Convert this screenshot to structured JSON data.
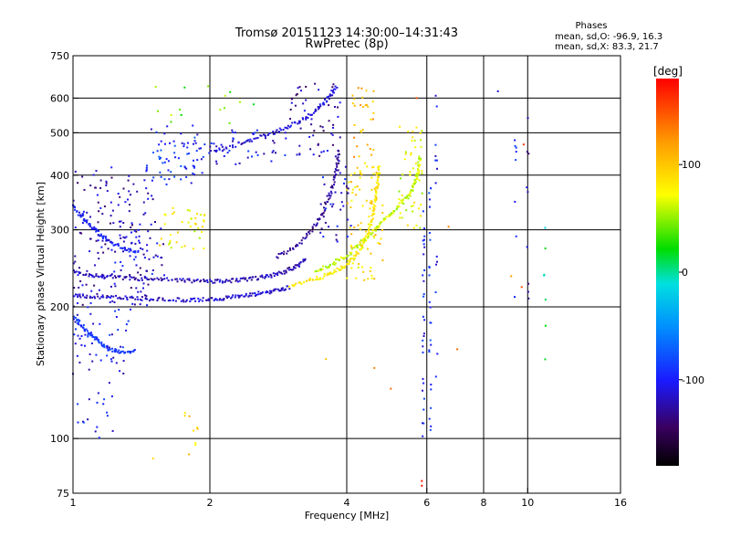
{
  "chart_data": {
    "type": "scatter",
    "title": "Tromsø 20151123 14:30:00–14:31:43",
    "subtitle": "RwPretec (8p)",
    "xlabel": "Frequency [MHz]",
    "ylabel": "Stationary phase Virtual Height [km]",
    "x_scale": "log",
    "y_scale": "log",
    "xlim": [
      1,
      16
    ],
    "ylim": [
      75,
      750
    ],
    "x_ticks": [
      1,
      2,
      4,
      6,
      8,
      10,
      16
    ],
    "y_ticks": [
      75,
      100,
      200,
      300,
      400,
      500,
      600,
      750
    ],
    "x_grid": [
      2,
      4,
      6,
      8,
      10
    ],
    "y_grid": [
      100,
      200,
      300,
      400,
      500,
      600
    ],
    "grid": true,
    "stats": {
      "heading": "Phases",
      "line_o": "mean, sd,O: -96.9, 16.3",
      "line_x": "mean, sd,X:  83.3, 21.7"
    },
    "colorbar": {
      "label": "[deg]",
      "min": -180,
      "max": 180,
      "ticks": [
        {
          "value": 100,
          "label": "100"
        },
        {
          "value": 0,
          "label": "0"
        },
        {
          "value": -100,
          "label": "-100"
        }
      ]
    },
    "traces": [
      {
        "phase": -120,
        "points": [
          [
            1.0,
            240
          ],
          [
            1.1,
            236
          ],
          [
            1.2,
            234
          ],
          [
            1.35,
            232
          ],
          [
            1.5,
            231
          ],
          [
            1.7,
            230
          ],
          [
            1.9,
            229
          ],
          [
            2.1,
            229
          ],
          [
            2.3,
            230
          ],
          [
            2.5,
            232
          ],
          [
            2.7,
            235
          ],
          [
            2.9,
            240
          ],
          [
            3.1,
            248
          ],
          [
            3.25,
            256
          ]
        ]
      },
      {
        "phase": -115,
        "points": [
          [
            1.0,
            213
          ],
          [
            1.1,
            211
          ],
          [
            1.25,
            210
          ],
          [
            1.4,
            209
          ],
          [
            1.6,
            208
          ],
          [
            1.8,
            207
          ],
          [
            2.0,
            208
          ],
          [
            2.2,
            210
          ],
          [
            2.4,
            212
          ],
          [
            2.6,
            215
          ],
          [
            2.8,
            218
          ],
          [
            3.0,
            222
          ]
        ]
      },
      {
        "phase": 80,
        "points": [
          [
            3.0,
            224
          ],
          [
            3.3,
            229
          ],
          [
            3.6,
            236
          ],
          [
            3.9,
            245
          ],
          [
            4.1,
            256
          ],
          [
            4.3,
            272
          ],
          [
            4.45,
            292
          ],
          [
            4.55,
            318
          ],
          [
            4.62,
            350
          ],
          [
            4.68,
            385
          ],
          [
            4.72,
            420
          ]
        ]
      },
      {
        "phase": 60,
        "points": [
          [
            3.4,
            240
          ],
          [
            3.7,
            250
          ],
          [
            4.0,
            262
          ],
          [
            4.3,
            280
          ],
          [
            4.6,
            300
          ],
          [
            4.9,
            320
          ],
          [
            5.2,
            340
          ],
          [
            5.5,
            362
          ],
          [
            5.65,
            385
          ],
          [
            5.75,
            410
          ],
          [
            5.8,
            440
          ]
        ]
      },
      {
        "phase": -110,
        "points": [
          [
            2.0,
            450
          ],
          [
            2.3,
            470
          ],
          [
            2.6,
            490
          ],
          [
            2.9,
            510
          ],
          [
            3.2,
            535
          ],
          [
            3.45,
            565
          ],
          [
            3.65,
            600
          ],
          [
            3.8,
            640
          ]
        ]
      },
      {
        "phase": -130,
        "points": [
          [
            2.8,
            260
          ],
          [
            3.1,
            275
          ],
          [
            3.35,
            300
          ],
          [
            3.55,
            330
          ],
          [
            3.7,
            370
          ],
          [
            3.8,
            410
          ],
          [
            3.85,
            460
          ]
        ]
      },
      {
        "phase": -90,
        "points": [
          [
            1.0,
            190
          ],
          [
            1.05,
            180
          ],
          [
            1.1,
            172
          ],
          [
            1.15,
            165
          ],
          [
            1.2,
            160
          ],
          [
            1.28,
            158
          ],
          [
            1.38,
            158
          ]
        ]
      },
      {
        "phase": -100,
        "points": [
          [
            1.0,
            340
          ],
          [
            1.05,
            320
          ],
          [
            1.1,
            305
          ],
          [
            1.15,
            292
          ],
          [
            1.2,
            282
          ],
          [
            1.3,
            272
          ],
          [
            1.4,
            265
          ]
        ]
      }
    ],
    "clusters": [
      {
        "phase": -95,
        "x_range": [
          1.45,
          1.95
        ],
        "y_range": [
          380,
          520
        ],
        "count": 70
      },
      {
        "phase": 75,
        "x_range": [
          1.55,
          1.95
        ],
        "y_range": [
          270,
          340
        ],
        "count": 40
      },
      {
        "phase": -120,
        "x_range": [
          1.0,
          1.5
        ],
        "y_range": [
          200,
          420
        ],
        "count": 150
      },
      {
        "phase": -105,
        "x_range": [
          1.0,
          1.35
        ],
        "y_range": [
          140,
          200
        ],
        "count": 50
      },
      {
        "phase": -110,
        "x_range": [
          1.2,
          1.6
        ],
        "y_range": [
          220,
          320
        ],
        "count": 40
      },
      {
        "phase": -105,
        "x_range": [
          2.0,
          3.0
        ],
        "y_range": [
          420,
          510
        ],
        "count": 45
      },
      {
        "phase": -125,
        "x_range": [
          3.0,
          3.9
        ],
        "y_range": [
          440,
          650
        ],
        "count": 55
      },
      {
        "phase": 90,
        "x_range": [
          4.0,
          4.8
        ],
        "y_range": [
          230,
          430
        ],
        "count": 90
      },
      {
        "phase": 110,
        "x_range": [
          4.1,
          4.6
        ],
        "y_range": [
          440,
          640
        ],
        "count": 30
      },
      {
        "phase": 70,
        "x_range": [
          5.2,
          5.9
        ],
        "y_range": [
          300,
          520
        ],
        "count": 50
      },
      {
        "phase": -110,
        "x_range": [
          3.5,
          4.1
        ],
        "y_range": [
          280,
          420
        ],
        "count": 35
      },
      {
        "phase": -100,
        "x_range": [
          1.0,
          1.25
        ],
        "y_range": [
          100,
          140
        ],
        "count": 18
      },
      {
        "phase": 90,
        "x_range": [
          1.75,
          1.9
        ],
        "y_range": [
          96,
          118
        ],
        "count": 8
      },
      {
        "phase": 40,
        "x_range": [
          1.5,
          2.5
        ],
        "y_range": [
          520,
          640
        ],
        "count": 15
      }
    ],
    "vertical_streaks": [
      {
        "x": 5.9,
        "y_range": [
          100,
          400
        ],
        "phase": -100,
        "count": 28
      },
      {
        "x": 6.1,
        "y_range": [
          100,
          400
        ],
        "phase": -90,
        "count": 24
      },
      {
        "x": 6.3,
        "y_range": [
          120,
          620
        ],
        "phase": -100,
        "count": 14
      },
      {
        "x": 9.4,
        "y_range": [
          190,
          640
        ],
        "phase": -100,
        "count": 8
      },
      {
        "x": 10.0,
        "y_range": [
          200,
          560
        ],
        "phase": -120,
        "count": 9
      },
      {
        "x": 10.9,
        "y_range": [
          150,
          600
        ],
        "phase": 0,
        "count": 7
      }
    ],
    "outliers": [
      {
        "x": 5.85,
        "y": 78,
        "phase": 170
      },
      {
        "x": 5.85,
        "y": 80,
        "phase": 170
      },
      {
        "x": 5.0,
        "y": 130,
        "phase": 140
      },
      {
        "x": 4.6,
        "y": 145,
        "phase": 130
      },
      {
        "x": 6.7,
        "y": 305,
        "phase": 130
      },
      {
        "x": 5.7,
        "y": 600,
        "phase": 150
      },
      {
        "x": 9.8,
        "y": 470,
        "phase": 160
      },
      {
        "x": 1.5,
        "y": 90,
        "phase": 90
      },
      {
        "x": 1.8,
        "y": 92,
        "phase": 110
      },
      {
        "x": 9.2,
        "y": 235,
        "phase": 120
      },
      {
        "x": 9.7,
        "y": 222,
        "phase": 150
      },
      {
        "x": 3.6,
        "y": 152,
        "phase": 100
      },
      {
        "x": 8.6,
        "y": 622,
        "phase": -110
      },
      {
        "x": 7.0,
        "y": 160,
        "phase": 140
      }
    ]
  }
}
